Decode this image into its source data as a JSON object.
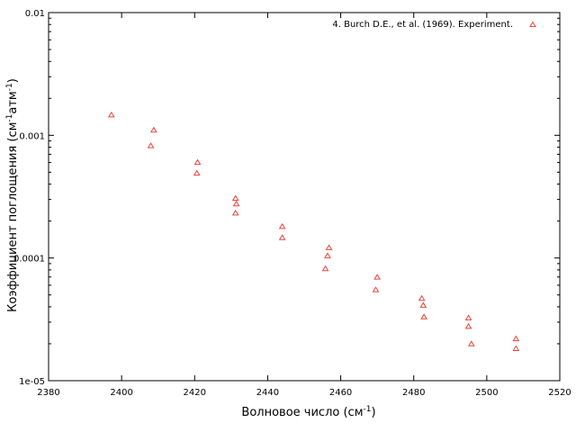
{
  "chart_data": {
    "type": "scatter",
    "title": "",
    "xlabel": "Волновое число (см",
    "xlabel_sup": "-1",
    "xlabel_tail": ")",
    "ylabel_main": "Коэффициент поглощения (см",
    "ylabel_sup1": "-1",
    "ylabel_mid": "атм",
    "ylabel_sup2": "-1",
    "ylabel_tail": ")",
    "xlim": [
      2380,
      2520
    ],
    "ylim": [
      1e-05,
      0.01
    ],
    "yscale": "log",
    "grid": false,
    "legend_position": "top-right",
    "x_ticks": [
      2380,
      2400,
      2420,
      2440,
      2460,
      2480,
      2500,
      2520
    ],
    "y_ticks": [
      {
        "value": 1e-05,
        "label": "1e-05"
      },
      {
        "value": 0.0001,
        "label": "0.0001"
      },
      {
        "value": 0.001,
        "label": "0.001"
      },
      {
        "value": 0.01,
        "label": "0.01"
      }
    ],
    "series": [
      {
        "name": "4. Burch D.E., et al. (1969). Experiment.",
        "color": "#e8463a",
        "marker": "triangle",
        "points": [
          {
            "x": 2397.2,
            "y": 0.00146
          },
          {
            "x": 2408.0,
            "y": 0.00082
          },
          {
            "x": 2408.8,
            "y": 0.0011
          },
          {
            "x": 2420.6,
            "y": 0.00049
          },
          {
            "x": 2420.8,
            "y": 0.0006
          },
          {
            "x": 2431.2,
            "y": 0.000306
          },
          {
            "x": 2431.4,
            "y": 0.000275
          },
          {
            "x": 2431.2,
            "y": 0.000232
          },
          {
            "x": 2444.0,
            "y": 0.00018
          },
          {
            "x": 2444.0,
            "y": 0.000146
          },
          {
            "x": 2456.8,
            "y": 0.000121
          },
          {
            "x": 2456.4,
            "y": 0.000104
          },
          {
            "x": 2455.8,
            "y": 8.15e-05
          },
          {
            "x": 2470.0,
            "y": 6.96e-05
          },
          {
            "x": 2469.6,
            "y": 5.49e-05
          },
          {
            "x": 2482.2,
            "y": 4.67e-05
          },
          {
            "x": 2482.6,
            "y": 4.11e-05
          },
          {
            "x": 2482.8,
            "y": 3.3e-05
          },
          {
            "x": 2495.0,
            "y": 3.24e-05
          },
          {
            "x": 2495.0,
            "y": 2.76e-05
          },
          {
            "x": 2495.8,
            "y": 1.99e-05
          },
          {
            "x": 2508.0,
            "y": 2.19e-05
          },
          {
            "x": 2508.0,
            "y": 1.82e-05
          }
        ]
      }
    ]
  }
}
